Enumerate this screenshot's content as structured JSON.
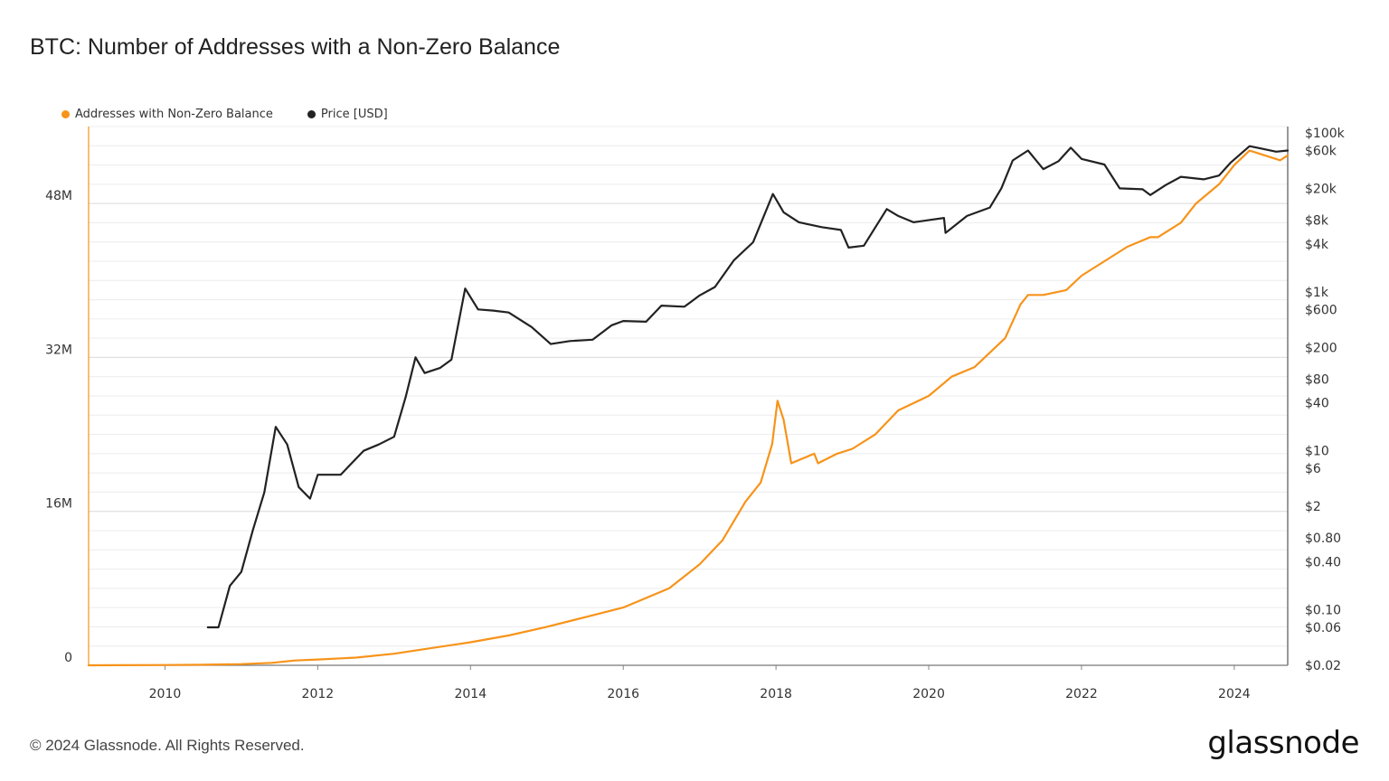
{
  "chart_data": {
    "type": "line",
    "title": "BTC: Number of Addresses with a Non-Zero Balance",
    "legend_position": "top-left",
    "grid": true,
    "x_ticks": [
      "2010",
      "2012",
      "2014",
      "2016",
      "2018",
      "2020",
      "2022",
      "2024"
    ],
    "xlim": [
      2009.0,
      2024.7
    ],
    "y_left": {
      "ticks": [
        "0",
        "16M",
        "32M",
        "48M"
      ],
      "tick_values": [
        0,
        16000000,
        32000000,
        48000000
      ],
      "ylim": [
        0,
        56000000
      ],
      "scale": "linear"
    },
    "y_right": {
      "ticks": [
        "$0.02",
        "$0.06",
        "$0.10",
        "$0.40",
        "$0.80",
        "$2",
        "$6",
        "$10",
        "$40",
        "$80",
        "$200",
        "$600",
        "$1k",
        "$4k",
        "$8k",
        "$20k",
        "$60k",
        "$100k"
      ],
      "tick_values": [
        0.02,
        0.06,
        0.1,
        0.4,
        0.8,
        2,
        6,
        10,
        40,
        80,
        200,
        600,
        1000,
        4000,
        8000,
        20000,
        60000,
        100000
      ],
      "ylim": [
        0.02,
        120000
      ],
      "scale": "log"
    },
    "series": [
      {
        "name": "Addresses with Non-Zero Balance",
        "color": "#f7931a",
        "axis": "left",
        "x": [
          2009.0,
          2010.0,
          2010.5,
          2011.0,
          2011.4,
          2011.7,
          2012.0,
          2012.5,
          2013.0,
          2013.5,
          2014.0,
          2014.5,
          2015.0,
          2015.5,
          2016.0,
          2016.3,
          2016.6,
          2017.0,
          2017.3,
          2017.6,
          2017.8,
          2017.95,
          2018.02,
          2018.1,
          2018.2,
          2018.5,
          2018.55,
          2018.8,
          2019.0,
          2019.3,
          2019.6,
          2020.0,
          2020.3,
          2020.6,
          2021.0,
          2021.2,
          2021.3,
          2021.5,
          2021.8,
          2022.0,
          2022.3,
          2022.6,
          2022.9,
          2023.0,
          2023.3,
          2023.5,
          2023.8,
          2024.0,
          2024.2,
          2024.4,
          2024.6,
          2024.7
        ],
        "values": [
          0,
          30000,
          60000,
          120000,
          250000,
          500000,
          600000,
          800000,
          1200000,
          1800000,
          2400000,
          3100000,
          4000000,
          5000000,
          6000000,
          7000000,
          8000000,
          10500000,
          13000000,
          17000000,
          19000000,
          23000000,
          27500000,
          25500000,
          21000000,
          22000000,
          21000000,
          22000000,
          22500000,
          24000000,
          26500000,
          28000000,
          30000000,
          31000000,
          34000000,
          37500000,
          38500000,
          38500000,
          39000000,
          40500000,
          42000000,
          43500000,
          44500000,
          44500000,
          46000000,
          48000000,
          50000000,
          52000000,
          53500000,
          53000000,
          52500000,
          53000000
        ]
      },
      {
        "name": "Price [USD]",
        "color": "#222222",
        "axis": "right",
        "x": [
          2010.56,
          2010.7,
          2010.85,
          2011.0,
          2011.15,
          2011.3,
          2011.45,
          2011.6,
          2011.75,
          2011.9,
          2012.0,
          2012.3,
          2012.6,
          2012.8,
          2013.0,
          2013.15,
          2013.28,
          2013.4,
          2013.6,
          2013.75,
          2013.93,
          2014.1,
          2014.3,
          2014.5,
          2014.8,
          2015.05,
          2015.3,
          2015.6,
          2015.85,
          2016.0,
          2016.3,
          2016.5,
          2016.8,
          2017.0,
          2017.2,
          2017.45,
          2017.7,
          2017.96,
          2018.1,
          2018.3,
          2018.6,
          2018.85,
          2018.95,
          2019.15,
          2019.45,
          2019.6,
          2019.8,
          2020.2,
          2020.22,
          2020.5,
          2020.8,
          2020.95,
          2021.1,
          2021.3,
          2021.5,
          2021.7,
          2021.86,
          2022.0,
          2022.3,
          2022.5,
          2022.8,
          2022.9,
          2023.1,
          2023.3,
          2023.6,
          2023.8,
          2023.95,
          2024.2,
          2024.4,
          2024.55,
          2024.7
        ],
        "values": [
          0.06,
          0.06,
          0.2,
          0.3,
          1.0,
          3.0,
          20,
          12,
          3.5,
          2.5,
          5,
          5,
          10,
          12,
          15,
          47,
          150,
          95,
          110,
          140,
          1100,
          600,
          580,
          550,
          360,
          220,
          240,
          250,
          380,
          430,
          420,
          670,
          650,
          900,
          1150,
          2500,
          4200,
          17000,
          10000,
          7500,
          6500,
          6000,
          3600,
          3800,
          11000,
          9000,
          7500,
          8500,
          5500,
          9000,
          11500,
          20000,
          45000,
          60000,
          35000,
          44000,
          65000,
          47000,
          40000,
          20000,
          19500,
          16500,
          22000,
          28000,
          26000,
          29000,
          42000,
          68000,
          62000,
          58000,
          60000
        ]
      }
    ]
  },
  "footer": {
    "copyright": "© 2024 Glassnode. All Rights Reserved.",
    "logo_text": "glassnode"
  }
}
